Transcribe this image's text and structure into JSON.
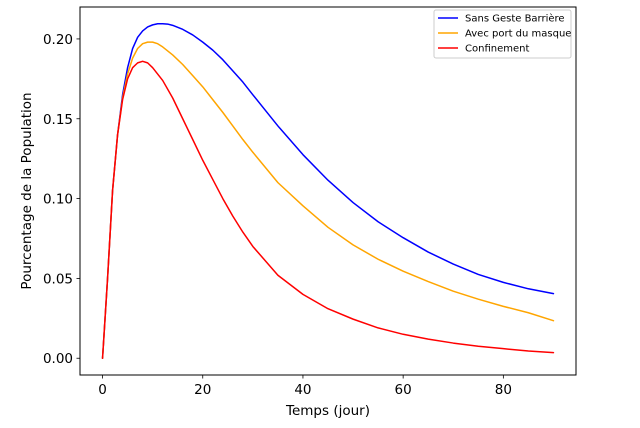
{
  "chart_data": {
    "type": "line",
    "title": "",
    "xlabel": "Temps (jour)",
    "ylabel": "Pourcentage de la Population",
    "xlim": [
      -4.5,
      94.5
    ],
    "ylim": [
      -0.0105,
      0.22
    ],
    "xticks": [
      0,
      20,
      40,
      60,
      80
    ],
    "xtick_labels": [
      "0",
      "20",
      "40",
      "60",
      "80"
    ],
    "yticks": [
      0.0,
      0.05,
      0.1,
      0.15,
      0.2
    ],
    "ytick_labels": [
      "0.00",
      "0.05",
      "0.10",
      "0.15",
      "0.20"
    ],
    "grid": false,
    "legend_position": "top-right",
    "series": [
      {
        "name": "Sans Geste Barrière",
        "color": "#0000ff",
        "points": [
          [
            0,
            0.0
          ],
          [
            1,
            0.05
          ],
          [
            2,
            0.105
          ],
          [
            3,
            0.14
          ],
          [
            4,
            0.165
          ],
          [
            5,
            0.182
          ],
          [
            6,
            0.194
          ],
          [
            7,
            0.201
          ],
          [
            8,
            0.205
          ],
          [
            9,
            0.2075
          ],
          [
            10,
            0.2088
          ],
          [
            11,
            0.2095
          ],
          [
            12,
            0.2095
          ],
          [
            13,
            0.2093
          ],
          [
            14,
            0.2085
          ],
          [
            16,
            0.206
          ],
          [
            18,
            0.2025
          ],
          [
            20,
            0.198
          ],
          [
            22,
            0.193
          ],
          [
            24,
            0.187
          ],
          [
            26,
            0.18
          ],
          [
            28,
            0.173
          ],
          [
            30,
            0.165
          ],
          [
            35,
            0.1455
          ],
          [
            40,
            0.1275
          ],
          [
            45,
            0.1115
          ],
          [
            50,
            0.0975
          ],
          [
            55,
            0.0855
          ],
          [
            60,
            0.0755
          ],
          [
            65,
            0.0665
          ],
          [
            70,
            0.059
          ],
          [
            75,
            0.0525
          ],
          [
            80,
            0.0475
          ],
          [
            85,
            0.0435
          ],
          [
            90,
            0.0405
          ]
        ]
      },
      {
        "name": "Avec port du masque",
        "color": "#ffa500",
        "points": [
          [
            0,
            0.0
          ],
          [
            1,
            0.05
          ],
          [
            2,
            0.105
          ],
          [
            3,
            0.14
          ],
          [
            4,
            0.163
          ],
          [
            5,
            0.178
          ],
          [
            6,
            0.188
          ],
          [
            7,
            0.194
          ],
          [
            8,
            0.197
          ],
          [
            9,
            0.198
          ],
          [
            10,
            0.198
          ],
          [
            11,
            0.197
          ],
          [
            12,
            0.195
          ],
          [
            14,
            0.19
          ],
          [
            16,
            0.184
          ],
          [
            18,
            0.177
          ],
          [
            20,
            0.17
          ],
          [
            22,
            0.162
          ],
          [
            24,
            0.154
          ],
          [
            26,
            0.1455
          ],
          [
            28,
            0.137
          ],
          [
            30,
            0.129
          ],
          [
            35,
            0.11
          ],
          [
            40,
            0.0955
          ],
          [
            45,
            0.082
          ],
          [
            50,
            0.071
          ],
          [
            55,
            0.062
          ],
          [
            60,
            0.0545
          ],
          [
            65,
            0.048
          ],
          [
            70,
            0.042
          ],
          [
            75,
            0.037
          ],
          [
            80,
            0.0325
          ],
          [
            85,
            0.0285
          ],
          [
            90,
            0.0235
          ]
        ]
      },
      {
        "name": "Confinement",
        "color": "#ff0000",
        "points": [
          [
            0,
            0.0
          ],
          [
            1,
            0.05
          ],
          [
            2,
            0.105
          ],
          [
            3,
            0.14
          ],
          [
            4,
            0.162
          ],
          [
            5,
            0.175
          ],
          [
            6,
            0.182
          ],
          [
            7,
            0.185
          ],
          [
            8,
            0.186
          ],
          [
            9,
            0.185
          ],
          [
            10,
            0.182
          ],
          [
            12,
            0.174
          ],
          [
            14,
            0.163
          ],
          [
            16,
            0.15
          ],
          [
            18,
            0.137
          ],
          [
            20,
            0.124
          ],
          [
            22,
            0.112
          ],
          [
            24,
            0.1
          ],
          [
            26,
            0.089
          ],
          [
            28,
            0.079
          ],
          [
            30,
            0.07
          ],
          [
            35,
            0.052
          ],
          [
            40,
            0.04
          ],
          [
            45,
            0.031
          ],
          [
            50,
            0.0245
          ],
          [
            55,
            0.019
          ],
          [
            60,
            0.015
          ],
          [
            65,
            0.012
          ],
          [
            70,
            0.0095
          ],
          [
            75,
            0.0075
          ],
          [
            80,
            0.006
          ],
          [
            85,
            0.0045
          ],
          [
            90,
            0.0035
          ]
        ]
      }
    ]
  }
}
